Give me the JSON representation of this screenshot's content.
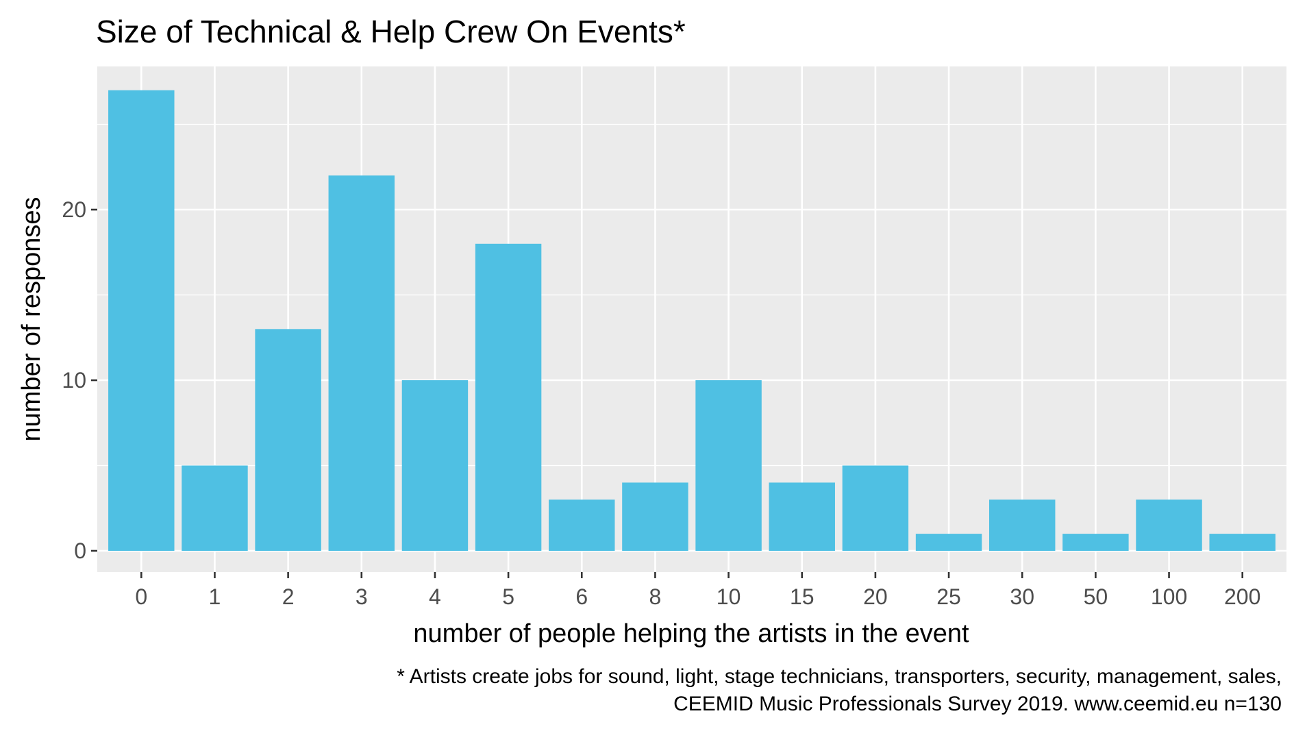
{
  "chart_data": {
    "type": "bar",
    "title": "Size of Technical & Help Crew On Events*",
    "xlabel": "number of people helping the artists in the event",
    "ylabel": "number of responses",
    "categories": [
      "0",
      "1",
      "2",
      "3",
      "4",
      "5",
      "6",
      "8",
      "10",
      "15",
      "20",
      "25",
      "30",
      "50",
      "100",
      "200"
    ],
    "values": [
      27,
      5,
      13,
      22,
      10,
      18,
      3,
      4,
      10,
      4,
      5,
      1,
      3,
      1,
      3,
      1
    ],
    "yticks": [
      "0",
      "10",
      "20"
    ],
    "ylim": [
      0,
      28.3
    ],
    "bar_color": "#4fc0e3",
    "panel_color": "#ebebeb",
    "grid": true,
    "caption": [
      "* Artists create jobs for sound, light, stage technicians, transporters, security, management, sales,",
      "CEEMID Music Professionals Survey 2019. www.ceemid.eu n=130"
    ]
  }
}
